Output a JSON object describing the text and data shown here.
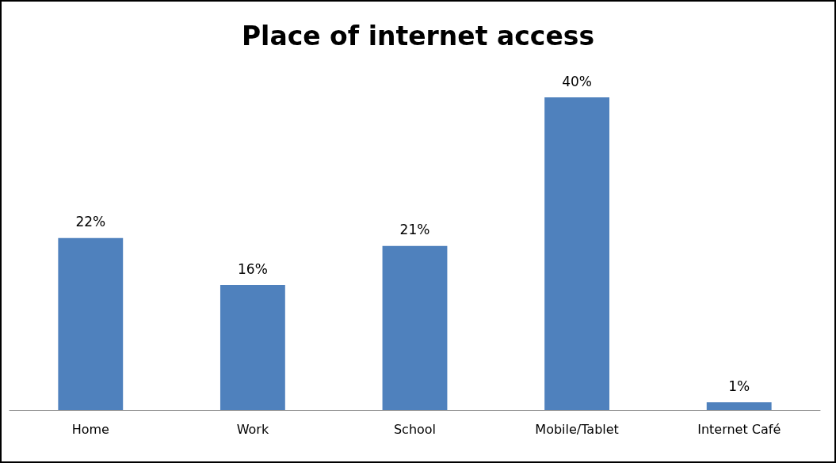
{
  "chart_data": {
    "type": "bar",
    "title": "Place of internet access",
    "categories": [
      "Home",
      "Work",
      "School",
      "Mobile/Tablet",
      "Internet Café"
    ],
    "values": [
      22,
      16,
      21,
      40,
      1
    ],
    "color": "#4f81bd",
    "value_labels": [
      "22%",
      "16%",
      "21%",
      "40%",
      "1%"
    ]
  }
}
